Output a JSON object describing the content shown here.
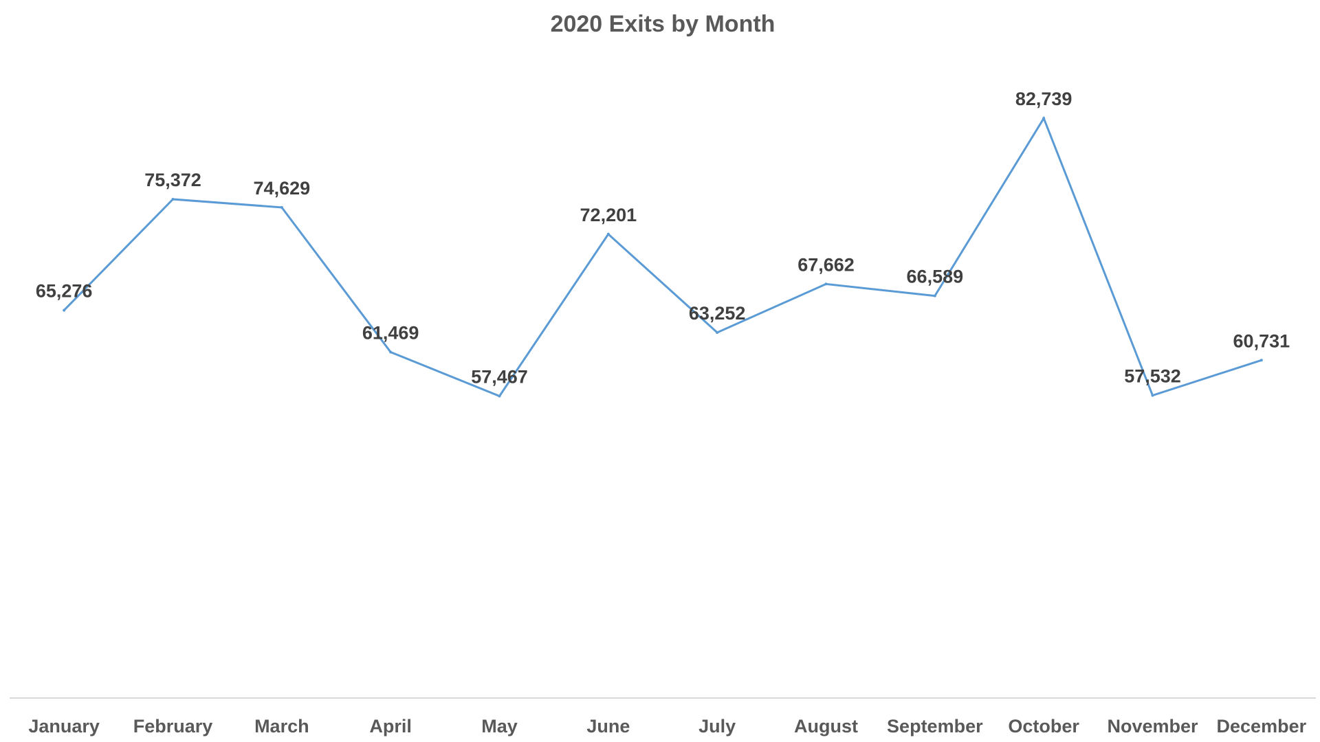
{
  "chart_data": {
    "type": "line",
    "title": "2020 Exits by Month",
    "xlabel": "",
    "ylabel": "",
    "categories": [
      "January",
      "February",
      "March",
      "April",
      "May",
      "June",
      "July",
      "August",
      "September",
      "October",
      "November",
      "December"
    ],
    "series": [
      {
        "values": [
          65276,
          75372,
          74629,
          61469,
          57467,
          72201,
          63252,
          67662,
          66589,
          82739,
          57532,
          60731
        ],
        "labels": [
          "65,276",
          "75,372",
          "74,629",
          "61,469",
          "57,467",
          "72,201",
          "63,252",
          "67,662",
          "66,589",
          "82,739",
          "57,532",
          "60,731"
        ],
        "color": "#5B9BD5"
      }
    ],
    "ylim": [
      30000,
      90000
    ],
    "grid": false,
    "legend": "none",
    "axis_color": "#D9D9D9"
  }
}
